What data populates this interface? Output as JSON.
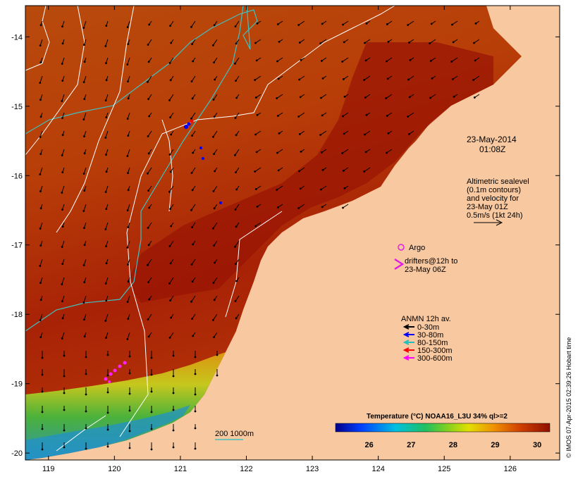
{
  "map": {
    "timestamp_date": "23-May-2014",
    "timestamp_time": "01:08Z",
    "axes": {
      "x_ticks": [
        "119",
        "120",
        "121",
        "122",
        "123",
        "124",
        "125",
        "126"
      ],
      "y_ticks": [
        "-14",
        "-15",
        "-16",
        "-17",
        "-18",
        "-19",
        "-20"
      ],
      "lon_range": [
        118.65,
        126.75
      ],
      "lat_range": [
        -20.1,
        -13.55
      ]
    },
    "altimetry_legend": {
      "lines": [
        "Altimetric sealevel",
        "(0.1m contours)",
        "and velocity for",
        "23-May 01Z",
        "0.5m/s (1kt 24h)"
      ]
    },
    "argo_legend": {
      "label": "Argo",
      "color": "#e020e0"
    },
    "drifter_legend": {
      "line1": "drifters@12h to",
      "line2": "23-May 06Z",
      "color": "#e020e0"
    },
    "anmn_legend": {
      "title": "ANMN 12h av.",
      "items": [
        {
          "label": "0-30m",
          "color": "#000000"
        },
        {
          "label": "30-80m",
          "color": "#0000ff"
        },
        {
          "label": "80-150m",
          "color": "#20c0c0"
        },
        {
          "label": "150-300m",
          "color": "#ff0000"
        },
        {
          "label": "300-600m",
          "color": "#ff00ff"
        }
      ]
    },
    "depth_legend": {
      "label": "200  1000m",
      "color": "#40c0c0"
    },
    "colorbar": {
      "title": "Temperature (°C) NOAA16_L3U 34% ql>=2",
      "ticks": [
        "26",
        "27",
        "28",
        "29",
        "30"
      ],
      "range": [
        25.2,
        30.3
      ]
    },
    "credit": "© IMOS 07-Apr-2015 02:39:26 Hobart time",
    "colors": {
      "land": "#f8c8a0",
      "ocean_warm": "#b83a08",
      "ocean_hot": "#9c1404",
      "isobath": "#40c0c0",
      "sealevel_contour": "#ffffff"
    }
  }
}
